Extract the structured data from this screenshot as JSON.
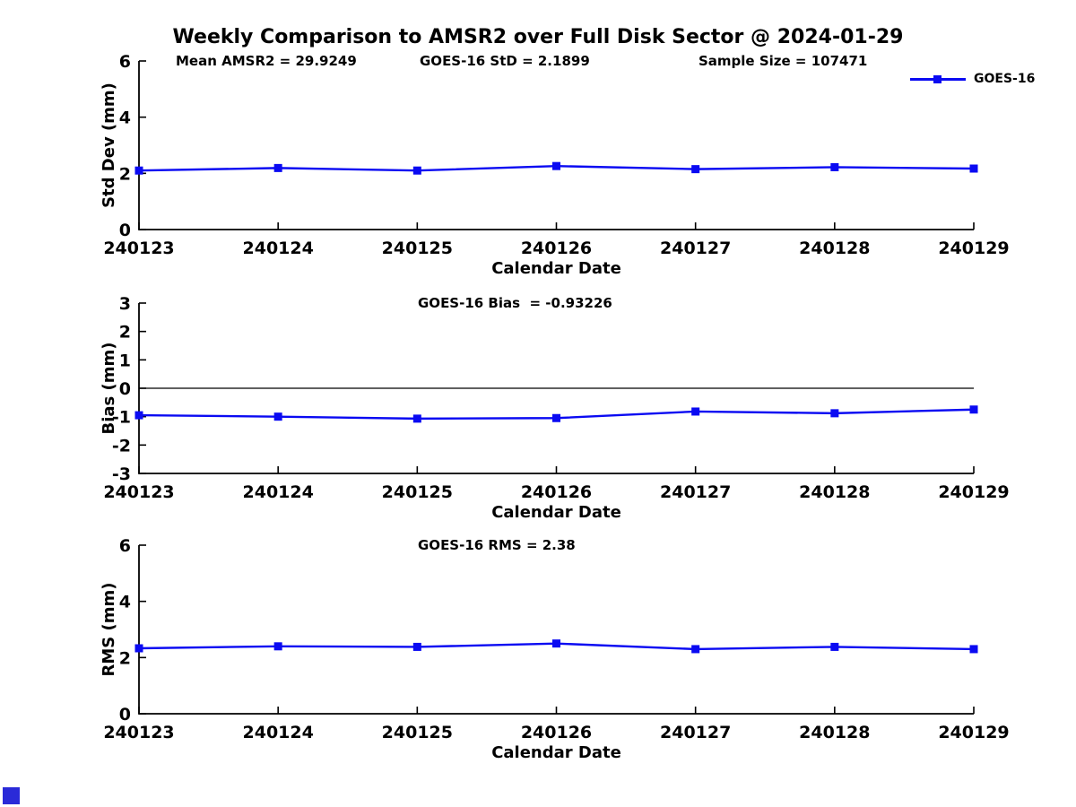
{
  "title": "Weekly Comparison to AMSR2 over Full Disk Sector @ 2024-01-29",
  "legend": {
    "label": "GOES-16"
  },
  "series_color": "#0a0af2",
  "corner_marker_color": "#2a2ad8",
  "axis_color": "#000000",
  "chart_data": {
    "see": "charts"
  },
  "charts": [
    {
      "type": "line",
      "name": "std-dev",
      "ylabel": "Std Dev (mm)",
      "xlabel": "Calendar Date",
      "ylim": [
        0,
        6
      ],
      "yticks": [
        0,
        2,
        4,
        6
      ],
      "zero_line": false,
      "grid": false,
      "categories": [
        "240123",
        "240124",
        "240125",
        "240126",
        "240127",
        "240128",
        "240129"
      ],
      "annotations": [
        "Mean AMSR2 = 29.9249",
        "GOES-16 StD = 2.1899",
        "Sample Size = 107471"
      ],
      "series": [
        {
          "name": "GOES-16",
          "values": [
            2.1,
            2.19,
            2.1,
            2.26,
            2.15,
            2.22,
            2.17
          ]
        }
      ]
    },
    {
      "type": "line",
      "name": "bias",
      "ylabel": "Bias (mm)",
      "xlabel": "Calendar Date",
      "ylim": [
        -3,
        3
      ],
      "yticks": [
        -3,
        -2,
        -1,
        0,
        1,
        2,
        3
      ],
      "zero_line": true,
      "grid": false,
      "categories": [
        "240123",
        "240124",
        "240125",
        "240126",
        "240127",
        "240128",
        "240129"
      ],
      "annotations": [
        "GOES-16 Bias  = -0.93226"
      ],
      "series": [
        {
          "name": "GOES-16",
          "values": [
            -0.95,
            -1.0,
            -1.07,
            -1.05,
            -0.82,
            -0.88,
            -0.75
          ]
        }
      ]
    },
    {
      "type": "line",
      "name": "rms",
      "ylabel": "RMS (mm)",
      "xlabel": "Calendar Date",
      "ylim": [
        0,
        6
      ],
      "yticks": [
        0,
        2,
        4,
        6
      ],
      "zero_line": false,
      "grid": false,
      "categories": [
        "240123",
        "240124",
        "240125",
        "240126",
        "240127",
        "240128",
        "240129"
      ],
      "annotations": [
        "GOES-16 RMS = 2.38"
      ],
      "series": [
        {
          "name": "GOES-16",
          "values": [
            2.33,
            2.4,
            2.38,
            2.5,
            2.3,
            2.38,
            2.3
          ]
        }
      ]
    }
  ]
}
